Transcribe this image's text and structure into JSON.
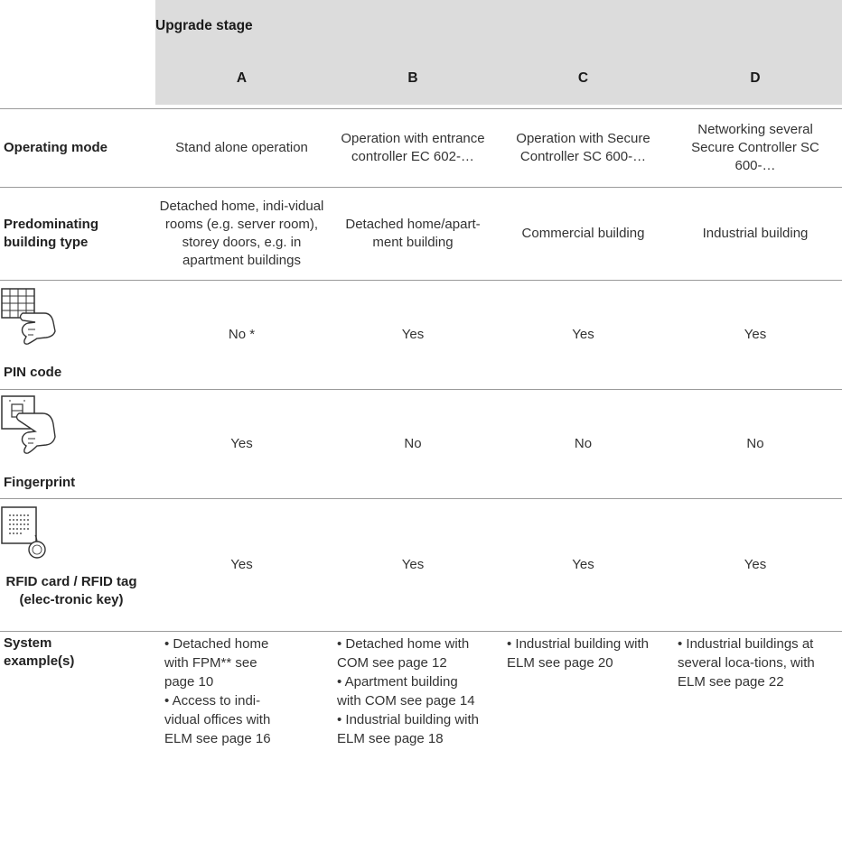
{
  "header": {
    "title": "Upgrade stage",
    "columns": [
      "A",
      "B",
      "C",
      "D"
    ]
  },
  "rows": {
    "operating_mode": {
      "label": "Operating mode",
      "values": [
        "Stand alone operation",
        "Operation with entrance controller EC 602-…",
        "Operation with Secure Controller SC 600-…",
        "Networking several Secure Controller SC 600-…"
      ]
    },
    "building_type": {
      "label": "Predominating building type",
      "values": [
        "Detached home, indi-vidual rooms (e.g. server room), storey doors, e.g. in apartment buildings",
        "Detached home/apart-ment building",
        "Commercial building",
        "Industrial building"
      ]
    },
    "pin_code": {
      "label": "PIN code",
      "icon": "keypad-hand-icon",
      "values": [
        "No *",
        "Yes",
        "Yes",
        "Yes"
      ]
    },
    "fingerprint": {
      "label": "Fingerprint",
      "icon": "fingerprint-reader-hand-icon",
      "values": [
        "Yes",
        "No",
        "No",
        "No"
      ]
    },
    "rfid": {
      "label": "RFID card / RFID tag (elec-tronic key)",
      "icon": "rfid-reader-tag-icon",
      "values": [
        "Yes",
        "Yes",
        "Yes",
        "Yes"
      ]
    },
    "system_examples": {
      "label": "System example(s)",
      "values": [
        [
          "• Detached home with FPM** see page 10",
          "• Access to indi-vidual offices with ELM see page 16"
        ],
        [
          "• Detached home with COM see page 12",
          "• Apartment building with COM see page 14",
          "• Industrial building with ELM see page 18"
        ],
        [
          "• Industrial building with ELM see page 20"
        ],
        [
          "• Industrial buildings at several loca-tions, with ELM see page 22"
        ]
      ]
    }
  }
}
